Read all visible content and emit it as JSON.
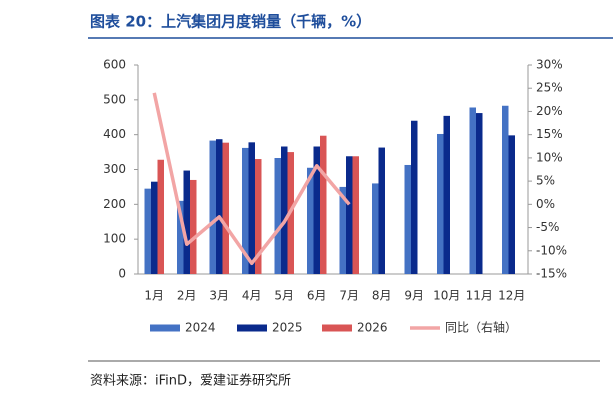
{
  "chart_data": {
    "type": "bar-line",
    "title": "图表 20：上汽集团月度销量（千辆，%）",
    "source": "资料来源：iFinD，爱建证券研究所",
    "categories": [
      "1月",
      "2月",
      "3月",
      "4月",
      "5月",
      "6月",
      "7月",
      "8月",
      "9月",
      "10月",
      "11月",
      "12月"
    ],
    "series": [
      {
        "name": "2024",
        "type": "bar",
        "color": "#4472c4",
        "values": [
          245,
          210,
          383,
          362,
          333,
          305,
          250,
          260,
          313,
          402,
          478,
          483
        ]
      },
      {
        "name": "2025",
        "type": "bar",
        "color": "#0a2a8c",
        "values": [
          265,
          297,
          387,
          378,
          366,
          366,
          338,
          363,
          440,
          454,
          462,
          398
        ]
      },
      {
        "name": "2026",
        "type": "bar",
        "color": "#d95555",
        "values": [
          328,
          270,
          377,
          330,
          350,
          397,
          338,
          null,
          null,
          null,
          null,
          null
        ]
      },
      {
        "name": "同比（右轴）",
        "type": "line",
        "axis": "y2",
        "color": "#f2a5a5",
        "values": [
          24,
          -8.6,
          -2.7,
          -12.7,
          -3.8,
          8.3,
          0,
          null,
          null,
          null,
          null,
          null
        ]
      }
    ],
    "ylim": [
      0,
      600
    ],
    "yticks": [
      0,
      100,
      200,
      300,
      400,
      500,
      600
    ],
    "y2lim": [
      -15,
      30
    ],
    "y2ticks": [
      {
        "value": -15,
        "label": "-15%"
      },
      {
        "value": -10,
        "label": "-10%"
      },
      {
        "value": -5,
        "label": "-5%"
      },
      {
        "value": 0,
        "label": "0%"
      },
      {
        "value": 5,
        "label": "5%"
      },
      {
        "value": 10,
        "label": "10%"
      },
      {
        "value": 15,
        "label": "15%"
      },
      {
        "value": 20,
        "label": "20%"
      },
      {
        "value": 25,
        "label": "25%"
      },
      {
        "value": 30,
        "label": "30%"
      }
    ]
  }
}
